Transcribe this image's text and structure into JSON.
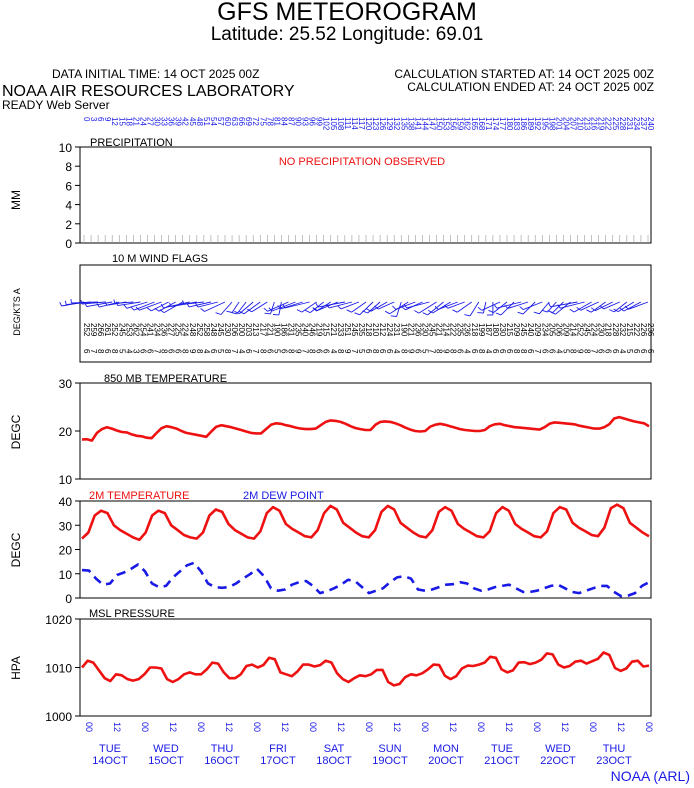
{
  "header": {
    "title": "GFS METEOROGRAM",
    "subtitle": "Latitude: 25.52 Longitude:  69.01",
    "init_time": "DATA INITIAL TIME: 14 OCT 2025 00Z",
    "calc_started": "CALCULATION STARTED AT: 14 OCT 2025 00Z",
    "calc_ended": "CALCULATION ENDED AT: 24 OCT 2025 00Z",
    "lab": "NOAA AIR RESOURCES LABORATORY",
    "server": "READY Web Server",
    "footer": "NOAA (ARL)"
  },
  "colors": {
    "temp": "#ee1111",
    "dew": "#1a1ae6",
    "axis": "#000000",
    "grid": "#999999"
  },
  "chart_data": [
    {
      "type": "bar",
      "panel": "precip",
      "title": "PRECIPITATION",
      "ylabel": "MM",
      "ylim": [
        0,
        10
      ],
      "yticks": [
        "10",
        "8",
        "6",
        "4",
        "2",
        "0"
      ],
      "note": "NO PRECIPITATION OBSERVED",
      "values": [],
      "forecast_hours": [
        "0",
        "3",
        "6",
        "9",
        "12",
        "15",
        "18",
        "21",
        "24",
        "27",
        "30",
        "33",
        "36",
        "39",
        "42",
        "45",
        "48",
        "51",
        "54",
        "57",
        "60",
        "63",
        "66",
        "69",
        "72",
        "75",
        "78",
        "81",
        "84",
        "87",
        "90",
        "93",
        "96",
        "99",
        "102",
        "105",
        "108",
        "111",
        "114",
        "117",
        "120",
        "123",
        "126",
        "129",
        "132",
        "135",
        "138",
        "141",
        "144",
        "147",
        "150",
        "153",
        "156",
        "159",
        "162",
        "165",
        "168",
        "171",
        "174",
        "177",
        "180",
        "183",
        "186",
        "189",
        "192",
        "195",
        "198",
        "201",
        "204",
        "207",
        "210",
        "213",
        "216",
        "219",
        "222",
        "225",
        "228",
        "231",
        "234",
        "237",
        "240"
      ]
    },
    {
      "type": "scatter",
      "panel": "wind",
      "title": "10 M  WIND FLAGS",
      "ylabel": "DEG/KTS  A",
      "directions": [
        "252",
        "259",
        "266",
        "261",
        "252",
        "245",
        "253",
        "262",
        "254",
        "241",
        "234",
        "236",
        "227",
        "225",
        "224",
        "248",
        "252",
        "258",
        "248",
        "245",
        "230",
        "206",
        "200",
        "203",
        "213",
        "217",
        "221",
        "190",
        "186",
        "231",
        "235",
        "240",
        "246",
        "219",
        "215",
        "221",
        "233",
        "251",
        "245",
        "235",
        "218",
        "210",
        "212",
        "224",
        "231",
        "190",
        "221",
        "236",
        "230",
        "245",
        "221",
        "214",
        "222",
        "235",
        "236",
        "218",
        "199",
        "187",
        "180",
        "230",
        "215",
        "209",
        "245",
        "240",
        "209",
        "234",
        "205",
        "206",
        "209",
        "214",
        "252",
        "245",
        "224",
        "230",
        "218",
        "228",
        "232",
        "215",
        "222",
        "226",
        "236"
      ],
      "speeds": [
        "6",
        "7",
        "8",
        "6",
        "8",
        "5",
        "4",
        "3",
        "6",
        "6",
        "7",
        "8",
        "6",
        "6",
        "8",
        "9",
        "8",
        "4",
        "6",
        "5",
        "8",
        "7",
        "4",
        "6",
        "7",
        "8",
        "6",
        "5",
        "6",
        "8",
        "9",
        "7",
        "8",
        "6",
        "6",
        "4",
        "8",
        "9",
        "7",
        "5",
        "6",
        "8",
        "6",
        "6",
        "4",
        "8",
        "9",
        "6",
        "5",
        "7",
        "8",
        "9",
        "8",
        "6",
        "4",
        "6",
        "8",
        "4",
        "6",
        "6",
        "6",
        "8",
        "8",
        "6",
        "7",
        "6",
        "6",
        "4",
        "5",
        "8",
        "9",
        "8",
        "7",
        "6",
        "6",
        "6",
        "4",
        "5",
        "6",
        "6",
        "6"
      ]
    },
    {
      "type": "line",
      "panel": "t850",
      "title": "850 MB  TEMPERATURE",
      "ylabel": "DEGC",
      "ylim": [
        10,
        30
      ],
      "yticks": [
        "30",
        "20",
        "10"
      ],
      "series": [
        {
          "color": "#ee1111",
          "values": [
            18.2,
            18.3,
            18.0,
            19.6,
            20.4,
            20.8,
            20.5,
            20.1,
            19.8,
            19.7,
            19.3,
            19.0,
            18.9,
            18.6,
            18.5,
            19.6,
            20.6,
            21.0,
            20.8,
            20.5,
            20.0,
            19.6,
            19.4,
            19.2,
            19.0,
            18.8,
            19.9,
            20.9,
            21.2,
            21.0,
            20.8,
            20.5,
            20.2,
            19.9,
            19.6,
            19.5,
            19.5,
            20.4,
            21.3,
            21.6,
            21.5,
            21.2,
            21.0,
            20.7,
            20.5,
            20.4,
            20.4,
            20.5,
            21.2,
            21.9,
            22.2,
            22.1,
            21.9,
            21.5,
            21.0,
            20.6,
            20.4,
            20.2,
            20.2,
            21.3,
            21.9,
            22.0,
            21.9,
            21.6,
            21.2,
            20.7,
            20.3,
            20.0,
            19.9,
            20.0,
            20.9,
            21.3,
            21.5,
            21.3,
            21.0,
            20.7,
            20.4,
            20.2,
            20.1,
            20.0,
            20.0,
            20.2,
            21.0,
            21.4,
            21.5,
            21.2,
            21.0,
            20.8,
            20.7,
            20.6,
            20.5,
            20.4,
            20.3,
            20.8,
            21.5,
            21.8,
            21.7,
            21.6,
            21.5,
            21.4,
            21.1,
            20.9,
            20.7,
            20.5,
            20.5,
            20.8,
            21.4,
            22.6,
            22.9,
            22.6,
            22.3,
            22.0,
            21.8,
            21.6,
            21.0
          ]
        }
      ]
    },
    {
      "type": "line",
      "panel": "t2m",
      "ylabel": "DEGC",
      "ylim": [
        0,
        40
      ],
      "yticks": [
        "40",
        "30",
        "20",
        "10",
        "0"
      ],
      "legend": [
        "2M TEMPERATURE",
        "2M  DEW POINT"
      ],
      "series": [
        {
          "name": "2M TEMPERATURE",
          "color": "#ee1111",
          "values": [
            24.5,
            27,
            34,
            36,
            35,
            30,
            28,
            26.5,
            25,
            24,
            27,
            34,
            36,
            35,
            30,
            28,
            26,
            25,
            24.5,
            27,
            34,
            36.5,
            35.5,
            30.5,
            28,
            26.5,
            25,
            24.5,
            27.5,
            35,
            37.5,
            36,
            30.5,
            28.5,
            27,
            25.5,
            25,
            28,
            35,
            38,
            36.5,
            31,
            29,
            27,
            25.5,
            25,
            28,
            35.5,
            38,
            36.5,
            31,
            29,
            27,
            25.5,
            25,
            28,
            35.5,
            37.5,
            36,
            30.5,
            28.5,
            27,
            25.5,
            25,
            27.5,
            35,
            37.5,
            36,
            30.5,
            28.5,
            27,
            25.5,
            25,
            27.5,
            35,
            37.5,
            36.5,
            31,
            29,
            27.5,
            26,
            25.5,
            29,
            37,
            38.5,
            37,
            31,
            29,
            27,
            25.5
          ]
        }
      ],
      "dew_points": [
        11.5,
        11.3,
        8,
        5.5,
        6,
        9.5,
        10.5,
        12,
        13.8,
        11,
        6,
        4.5,
        5,
        8.5,
        11,
        13.5,
        14.5,
        11,
        6,
        4.5,
        4.2,
        4.5,
        6,
        8,
        9.8,
        12,
        9,
        4,
        3,
        3.5,
        5.5,
        6.5,
        7,
        5,
        2,
        2.8,
        4,
        5.5,
        7.5,
        7,
        4.5,
        2,
        3,
        4,
        6.5,
        8.5,
        9,
        8,
        3.5,
        3,
        3.5,
        4.5,
        5.5,
        5.7,
        6.5,
        6,
        4,
        3,
        3.5,
        4.5,
        5,
        5.5,
        4,
        2.5,
        2.5,
        3,
        4,
        5,
        5.5,
        4,
        2.5,
        2,
        3,
        4,
        5,
        5,
        2.5,
        0.8,
        1,
        2,
        5,
        6.5
      ]
    },
    {
      "type": "line",
      "panel": "slp",
      "title": "MSL PRESSURE",
      "ylabel": "HPA",
      "ylim": [
        1000,
        1020
      ],
      "yticks": [
        "1020",
        "1010",
        "1000"
      ],
      "series": [
        {
          "color": "#ee1111",
          "values": [
            1010,
            1011.4,
            1011,
            1009.4,
            1007.8,
            1007.2,
            1008.6,
            1008.4,
            1007.6,
            1007.3,
            1007.6,
            1008.6,
            1010,
            1010,
            1009.8,
            1007.6,
            1007,
            1007.6,
            1008.6,
            1009,
            1008.6,
            1008.6,
            1009.6,
            1011,
            1010.8,
            1009,
            1007.8,
            1007.8,
            1008.6,
            1010.3,
            1010.6,
            1010,
            1010.5,
            1012,
            1011.7,
            1009,
            1008.6,
            1008.2,
            1009.2,
            1010.6,
            1010.6,
            1010.2,
            1010.5,
            1011.4,
            1011,
            1008.8,
            1007.6,
            1007,
            1007.8,
            1008.4,
            1008.2,
            1008.6,
            1009.5,
            1009.5,
            1007,
            1006.3,
            1006.6,
            1008,
            1008.6,
            1008.4,
            1008.8,
            1009.6,
            1010.6,
            1010.5,
            1008.3,
            1007.6,
            1008.2,
            1009.8,
            1010.4,
            1010.3,
            1010.6,
            1011,
            1012.2,
            1012,
            1009.6,
            1009,
            1009.4,
            1011,
            1011.1,
            1010.7,
            1011,
            1011.6,
            1012.9,
            1012.7,
            1010.6,
            1010,
            1010.3,
            1011.2,
            1011.4,
            1010.8,
            1011.3,
            1011.8,
            1013.1,
            1012.6,
            1009.9,
            1009.3,
            1009.8,
            1011.2,
            1011.4,
            1010.2,
            1010.4
          ]
        }
      ],
      "x_labels": [
        "00",
        "12",
        "00",
        "12",
        "00",
        "12",
        "00",
        "12",
        "00",
        "12",
        "00",
        "12",
        "00",
        "12",
        "00",
        "12",
        "00",
        "12",
        "00",
        "12",
        "00"
      ],
      "x_labels_full": [
        "14/00",
        "14/12",
        "15/00",
        "15/12",
        "16/00",
        "16/12",
        "17/00",
        "17/12",
        "18/00",
        "18/12",
        "19/00",
        "19/12",
        "20/00",
        "20/12",
        "21/00",
        "21/12",
        "22/00",
        "22/12",
        "23/00",
        "23/12",
        "24/00"
      ],
      "days": [
        {
          "dow": "TUE",
          "date": "14OCT"
        },
        {
          "dow": "WED",
          "date": "15OCT"
        },
        {
          "dow": "THU",
          "date": "16OCT"
        },
        {
          "dow": "FRI",
          "date": "17OCT"
        },
        {
          "dow": "SAT",
          "date": "18OCT"
        },
        {
          "dow": "SUN",
          "date": "19OCT"
        },
        {
          "dow": "MON",
          "date": "20OCT"
        },
        {
          "dow": "TUE",
          "date": "21OCT"
        },
        {
          "dow": "WED",
          "date": "22OCT"
        },
        {
          "dow": "THU",
          "date": "23OCT"
        }
      ]
    }
  ]
}
